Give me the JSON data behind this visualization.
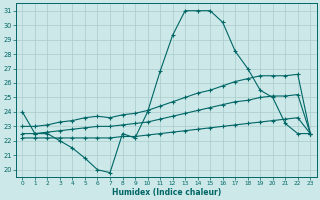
{
  "xlabel": "Humidex (Indice chaleur)",
  "xlim": [
    -0.5,
    23.5
  ],
  "ylim": [
    19.5,
    31.5
  ],
  "xticks": [
    0,
    1,
    2,
    3,
    4,
    5,
    6,
    7,
    8,
    9,
    10,
    11,
    12,
    13,
    14,
    15,
    16,
    17,
    18,
    19,
    20,
    21,
    22,
    23
  ],
  "yticks": [
    20,
    21,
    22,
    23,
    24,
    25,
    26,
    27,
    28,
    29,
    30,
    31
  ],
  "bg_color": "#cce8e8",
  "line_color": "#006666",
  "grid_color": "#aacccc",
  "line1_x": [
    0,
    1,
    2,
    3,
    4,
    5,
    6,
    7,
    8,
    9,
    10,
    11,
    12,
    13,
    14,
    15,
    16,
    17,
    18,
    19,
    20,
    21,
    22,
    23
  ],
  "line1_y": [
    24.0,
    22.5,
    22.5,
    22.0,
    21.5,
    20.8,
    20.0,
    19.8,
    22.5,
    22.2,
    24.0,
    26.8,
    29.3,
    31.0,
    31.0,
    31.0,
    30.2,
    28.2,
    27.0,
    25.5,
    25.0,
    23.2,
    22.5,
    22.5
  ],
  "line2_x": [
    0,
    1,
    2,
    3,
    4,
    5,
    6,
    7,
    8,
    9,
    10,
    11,
    12,
    13,
    14,
    15,
    16,
    17,
    18,
    19,
    20,
    21,
    22,
    23
  ],
  "line2_y": [
    22.2,
    22.2,
    22.2,
    22.2,
    22.2,
    22.2,
    22.2,
    22.2,
    22.3,
    22.3,
    22.4,
    22.5,
    22.6,
    22.7,
    22.8,
    22.9,
    23.0,
    23.1,
    23.2,
    23.3,
    23.4,
    23.5,
    23.6,
    22.5
  ],
  "line3_x": [
    0,
    1,
    2,
    3,
    4,
    5,
    6,
    7,
    8,
    9,
    10,
    11,
    12,
    13,
    14,
    15,
    16,
    17,
    18,
    19,
    20,
    21,
    22,
    23
  ],
  "line3_y": [
    22.5,
    22.5,
    22.6,
    22.7,
    22.8,
    22.9,
    23.0,
    23.0,
    23.1,
    23.2,
    23.3,
    23.5,
    23.7,
    23.9,
    24.1,
    24.3,
    24.5,
    24.7,
    24.8,
    25.0,
    25.1,
    25.1,
    25.2,
    22.5
  ],
  "line4_x": [
    0,
    1,
    2,
    3,
    4,
    5,
    6,
    7,
    8,
    9,
    10,
    11,
    12,
    13,
    14,
    15,
    16,
    17,
    18,
    19,
    20,
    21,
    22,
    23
  ],
  "line4_y": [
    23.0,
    23.0,
    23.1,
    23.3,
    23.4,
    23.6,
    23.7,
    23.6,
    23.8,
    23.9,
    24.1,
    24.4,
    24.7,
    25.0,
    25.3,
    25.5,
    25.8,
    26.1,
    26.3,
    26.5,
    26.5,
    26.5,
    26.6,
    22.5
  ]
}
